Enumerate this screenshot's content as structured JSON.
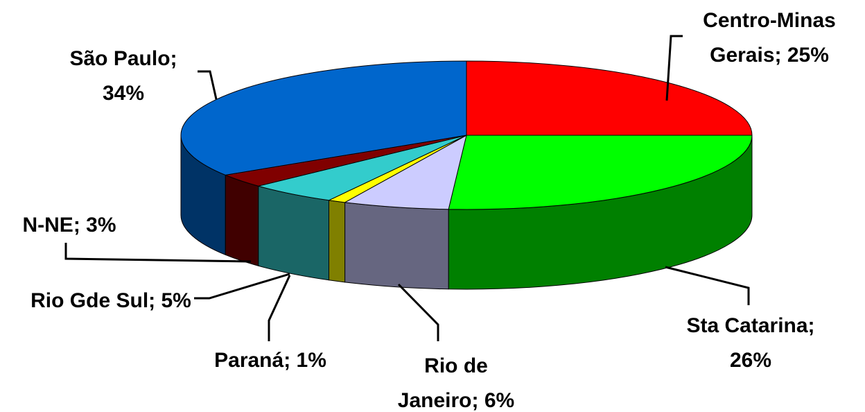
{
  "chart_data": {
    "type": "pie",
    "labels": [
      "Centro-Minas Gerais; 25%",
      "Sta Catarina; 26%",
      "Rio de Janeiro; 6%",
      "Paraná; 1%",
      "Rio Gde Sul; 5%",
      "N-NE; 3%",
      "São Paulo; 34%"
    ],
    "values": [
      25,
      26,
      6,
      1,
      5,
      3,
      34
    ],
    "colors": [
      "#ff0000",
      "#00ff00",
      "#ccccff",
      "#ffff00",
      "#33cccc",
      "#800000",
      "#0066cc"
    ]
  }
}
